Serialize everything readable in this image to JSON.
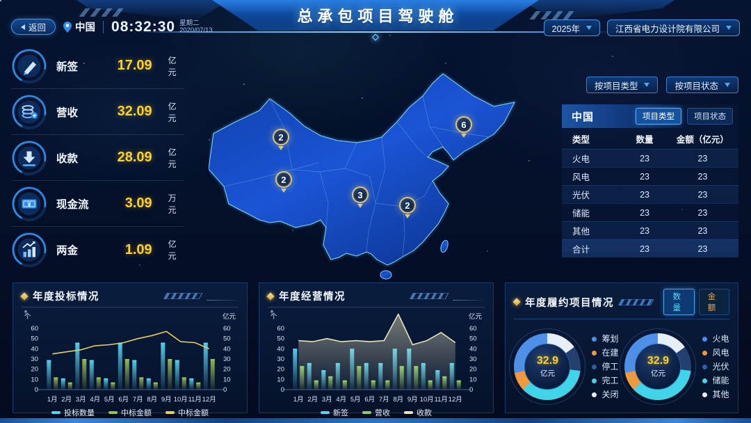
{
  "header": {
    "back_label": "返回",
    "location": "中国",
    "time": "08:32:30",
    "weekday": "星期二",
    "date": "2020/07/13",
    "title": "总承包项目驾驶舱",
    "year_select": "2025年",
    "company_select": "江西省电力设计院有限公司"
  },
  "kpis": [
    {
      "label": "新签",
      "value": "17.09",
      "unit": "亿元"
    },
    {
      "label": "营收",
      "value": "32.09",
      "unit": "亿元"
    },
    {
      "label": "收款",
      "value": "28.09",
      "unit": "亿元"
    },
    {
      "label": "现金流",
      "value": "3.09",
      "unit": "万元"
    },
    {
      "label": "两金",
      "value": "1.09",
      "unit": "亿元"
    }
  ],
  "map": {
    "markers": [
      {
        "value": "2",
        "x": 104,
        "y": 105
      },
      {
        "value": "2",
        "x": 108,
        "y": 166
      },
      {
        "value": "3",
        "x": 218,
        "y": 188
      },
      {
        "value": "2",
        "x": 286,
        "y": 203
      },
      {
        "value": "6",
        "x": 367,
        "y": 87
      }
    ]
  },
  "filters": {
    "by_type": "按项目类型",
    "by_status": "按项目状态"
  },
  "region_table": {
    "region": "中国",
    "tabs": [
      {
        "label": "项目类型",
        "active": true
      },
      {
        "label": "项目状态",
        "active": false
      }
    ],
    "columns": [
      "类型",
      "数量",
      "金额（亿元）"
    ],
    "rows": [
      {
        "type": "火电",
        "count": "23",
        "amount": "23"
      },
      {
        "type": "风电",
        "count": "23",
        "amount": "23"
      },
      {
        "type": "光伏",
        "count": "23",
        "amount": "23"
      },
      {
        "type": "储能",
        "count": "23",
        "amount": "23"
      },
      {
        "type": "其他",
        "count": "23",
        "amount": "23"
      },
      {
        "type": "合计",
        "count": "23",
        "amount": "23"
      }
    ]
  },
  "chart_data": [
    {
      "type": "bar",
      "title": "年度投标情况",
      "categories": [
        "1月",
        "2月",
        "3月",
        "4月",
        "5月",
        "6月",
        "7月",
        "8月",
        "9月",
        "10月",
        "11月",
        "12月"
      ],
      "left_unit": "个",
      "right_unit": "亿元",
      "ylim": [
        0,
        60
      ],
      "yticks": [
        0,
        10,
        20,
        30,
        40,
        50,
        60
      ],
      "legend_position": "bottom",
      "grid": false,
      "series": [
        {
          "name": "投标数量",
          "type": "bar",
          "color": "#55d4f5",
          "values": [
            29,
            11,
            46,
            29,
            11,
            46,
            29,
            11,
            46,
            29,
            11,
            46
          ]
        },
        {
          "name": "中标金额",
          "type": "bar",
          "color": "#9cbf5a",
          "values": [
            12,
            7,
            30,
            12,
            7,
            30,
            12,
            7,
            30,
            12,
            7,
            30
          ]
        },
        {
          "name": "中标金额",
          "type": "line",
          "color": "#e8cf5e",
          "values": [
            35,
            37,
            39,
            43,
            44,
            46,
            50,
            53,
            57,
            47,
            46,
            40
          ]
        }
      ]
    },
    {
      "type": "bar",
      "title": "年度经营情况",
      "categories": [
        "1月",
        "2月",
        "3月",
        "4月",
        "5月",
        "6月",
        "7月",
        "8月",
        "9月",
        "10月",
        "11月",
        "12月"
      ],
      "left_unit": "个",
      "right_unit": "亿元",
      "ylim": [
        0,
        60
      ],
      "yticks": [
        0,
        10,
        20,
        30,
        40,
        50,
        60
      ],
      "legend_position": "bottom",
      "grid": false,
      "series": [
        {
          "name": "新签",
          "type": "bar",
          "color": "#55d4f5",
          "values": [
            40,
            26,
            19,
            26,
            40,
            26,
            26,
            40,
            40,
            26,
            19,
            26
          ]
        },
        {
          "name": "营收",
          "type": "bar",
          "color": "#8fcf62",
          "values": [
            23,
            9,
            13,
            9,
            23,
            9,
            9,
            23,
            23,
            9,
            13,
            9
          ]
        },
        {
          "name": "收款",
          "type": "line",
          "area": true,
          "color": "#e8e4bc",
          "values": [
            48,
            47,
            50,
            47,
            48,
            47,
            48,
            74,
            44,
            48,
            56,
            46
          ]
        }
      ]
    },
    {
      "type": "pie",
      "title": "年度履约项目情况",
      "toggle": [
        {
          "label": "数量",
          "active": true
        },
        {
          "label": "金额",
          "active": false
        }
      ],
      "donuts": [
        {
          "center_value": "32.9",
          "center_unit": "亿元",
          "legend": [
            {
              "label": "筹划",
              "color": "#4e8fe8"
            },
            {
              "label": "在建",
              "color": "#ee9a3c"
            },
            {
              "label": "停工",
              "color": "#2e5ca8"
            },
            {
              "label": "完工",
              "color": "#3fd4e8"
            },
            {
              "label": "关闭",
              "color": "#e6eef8"
            }
          ],
          "ring": [
            {
              "color": "#e6eef8",
              "pct": 15
            },
            {
              "color": "#23406e",
              "pct": 12
            },
            {
              "color": "#3fd4e8",
              "pct": 36
            },
            {
              "color": "#ee9a3c",
              "pct": 9
            },
            {
              "color": "#4e8fe8",
              "pct": 28
            }
          ]
        },
        {
          "center_value": "32.9",
          "center_unit": "亿元",
          "legend": [
            {
              "label": "火电",
              "color": "#4e8fe8"
            },
            {
              "label": "风电",
              "color": "#ee9a3c"
            },
            {
              "label": "光伏",
              "color": "#2e5ca8"
            },
            {
              "label": "储能",
              "color": "#3fd4e8"
            },
            {
              "label": "其他",
              "color": "#e6eef8"
            }
          ],
          "ring": [
            {
              "color": "#e6eef8",
              "pct": 15
            },
            {
              "color": "#23406e",
              "pct": 12
            },
            {
              "color": "#3fd4e8",
              "pct": 36
            },
            {
              "color": "#ee9a3c",
              "pct": 9
            },
            {
              "color": "#4e8fe8",
              "pct": 28
            }
          ]
        }
      ]
    }
  ],
  "colors": {
    "accent_cyan": "#55d4f5",
    "accent_yellow": "#ffd21e",
    "map_fill": "#1450c8",
    "map_border": "#6fd0ff"
  }
}
